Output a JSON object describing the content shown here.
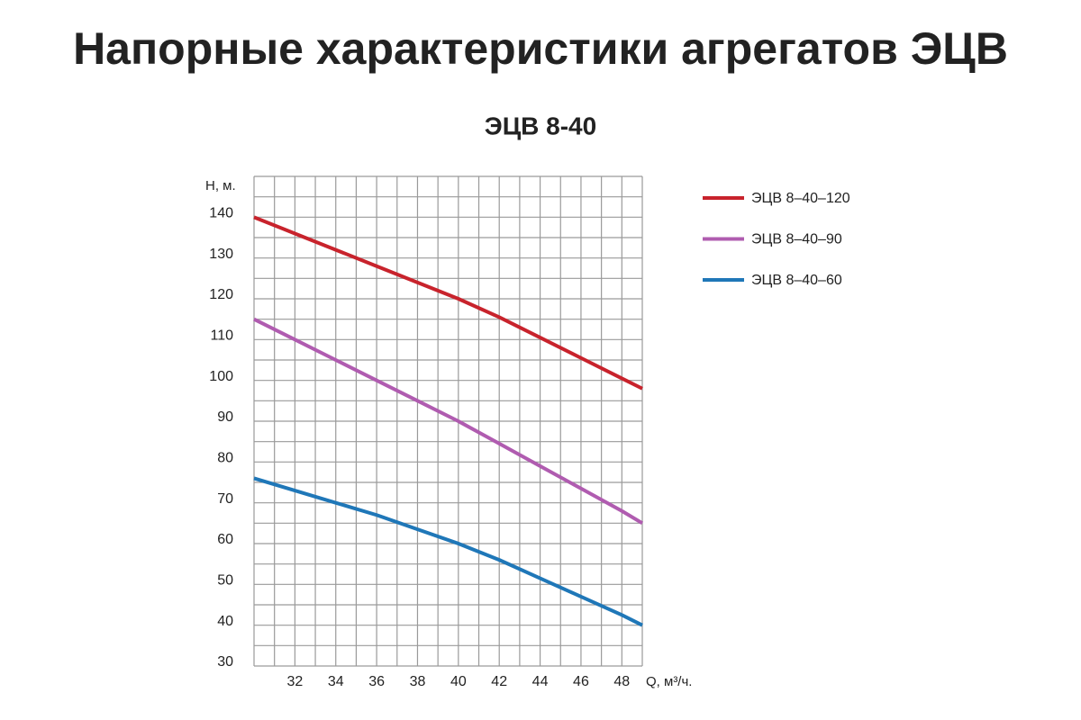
{
  "chart_data": {
    "type": "line",
    "title": "Напорные характеристики агрегатов ЭЦВ",
    "subtitle": "ЭЦВ 8-40",
    "y_label": "Н, м.",
    "x_label": "Q, м³/ч.",
    "x": [
      30,
      32,
      34,
      36,
      38,
      40,
      42,
      44,
      46,
      48,
      49
    ],
    "series": [
      {
        "name": "ЭЦВ 8–40–120",
        "color": "#c8232c",
        "values": [
          140,
          136,
          132,
          128,
          124,
          120,
          115.5,
          110.5,
          105.5,
          100.5,
          98
        ]
      },
      {
        "name": "ЭЦВ 8–40–90",
        "color": "#b05cb0",
        "values": [
          115,
          110,
          105,
          100,
          95,
          90,
          84.5,
          79,
          73.5,
          68,
          65
        ]
      },
      {
        "name": "ЭЦВ 8–40–60",
        "color": "#1f77b8",
        "values": [
          76,
          73,
          70,
          67,
          63.5,
          60,
          56,
          51.5,
          47,
          42.5,
          40
        ]
      }
    ],
    "xlim": [
      30,
      49
    ],
    "ylim": [
      30,
      150
    ],
    "xticks": [
      32,
      34,
      36,
      38,
      40,
      42,
      44,
      46,
      48
    ],
    "yticks": [
      30,
      40,
      50,
      60,
      70,
      80,
      90,
      100,
      110,
      120,
      130,
      140
    ],
    "xgrid": [
      30,
      31,
      32,
      33,
      34,
      35,
      36,
      37,
      38,
      39,
      40,
      41,
      42,
      43,
      44,
      45,
      46,
      47,
      48,
      49
    ],
    "ygrid": [
      30,
      35,
      40,
      45,
      50,
      55,
      60,
      65,
      70,
      75,
      80,
      85,
      90,
      95,
      100,
      105,
      110,
      115,
      120,
      125,
      130,
      135,
      140,
      145,
      150
    ],
    "grid": true,
    "legend": "right"
  }
}
